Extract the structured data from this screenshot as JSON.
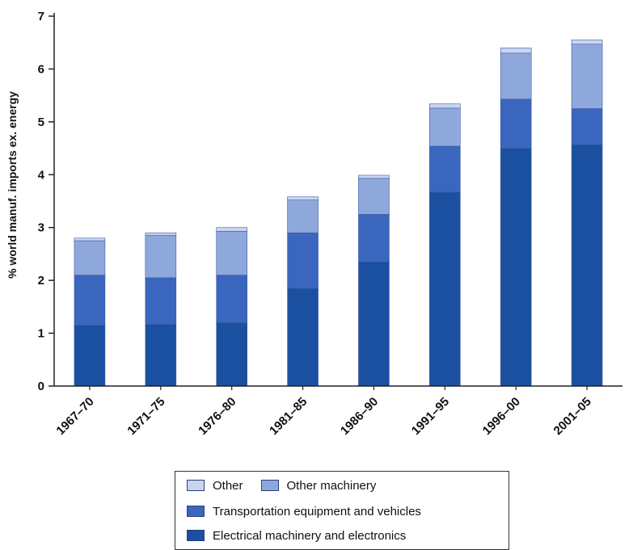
{
  "chart_data": {
    "type": "bar",
    "stacked": true,
    "categories": [
      "1967–70",
      "1971–75",
      "1976–80",
      "1981–85",
      "1986–90",
      "1991–95",
      "1996–00",
      "2001–05"
    ],
    "series": [
      {
        "name": "Electrical machinery and electronics",
        "color": "#1b4fa0",
        "values": [
          1.15,
          1.17,
          1.2,
          1.85,
          2.35,
          3.67,
          4.5,
          4.57
        ]
      },
      {
        "name": "Transportation equipment and vehicles",
        "color": "#3a67bd",
        "values": [
          0.95,
          0.88,
          0.9,
          1.05,
          0.9,
          0.87,
          0.93,
          0.68
        ]
      },
      {
        "name": "Other machinery",
        "color": "#8fa8dc",
        "values": [
          0.65,
          0.8,
          0.83,
          0.62,
          0.68,
          0.72,
          0.87,
          1.22
        ]
      },
      {
        "name": "Other",
        "color": "#c9d5f0",
        "values": [
          0.05,
          0.05,
          0.07,
          0.06,
          0.06,
          0.08,
          0.1,
          0.08
        ]
      }
    ],
    "ylabel": "% world manuf. imports ex. energy",
    "xlabel": "",
    "title": "",
    "ylim": [
      0,
      7
    ],
    "yticks": [
      0,
      1,
      2,
      3,
      4,
      5,
      6,
      7
    ],
    "grid": false,
    "legend_position": "bottom"
  },
  "legend": {
    "other": "Other",
    "other_machinery": "Other machinery",
    "transportation": "Transportation equipment and vehicles",
    "electrical": "Electrical machinery and electronics"
  }
}
